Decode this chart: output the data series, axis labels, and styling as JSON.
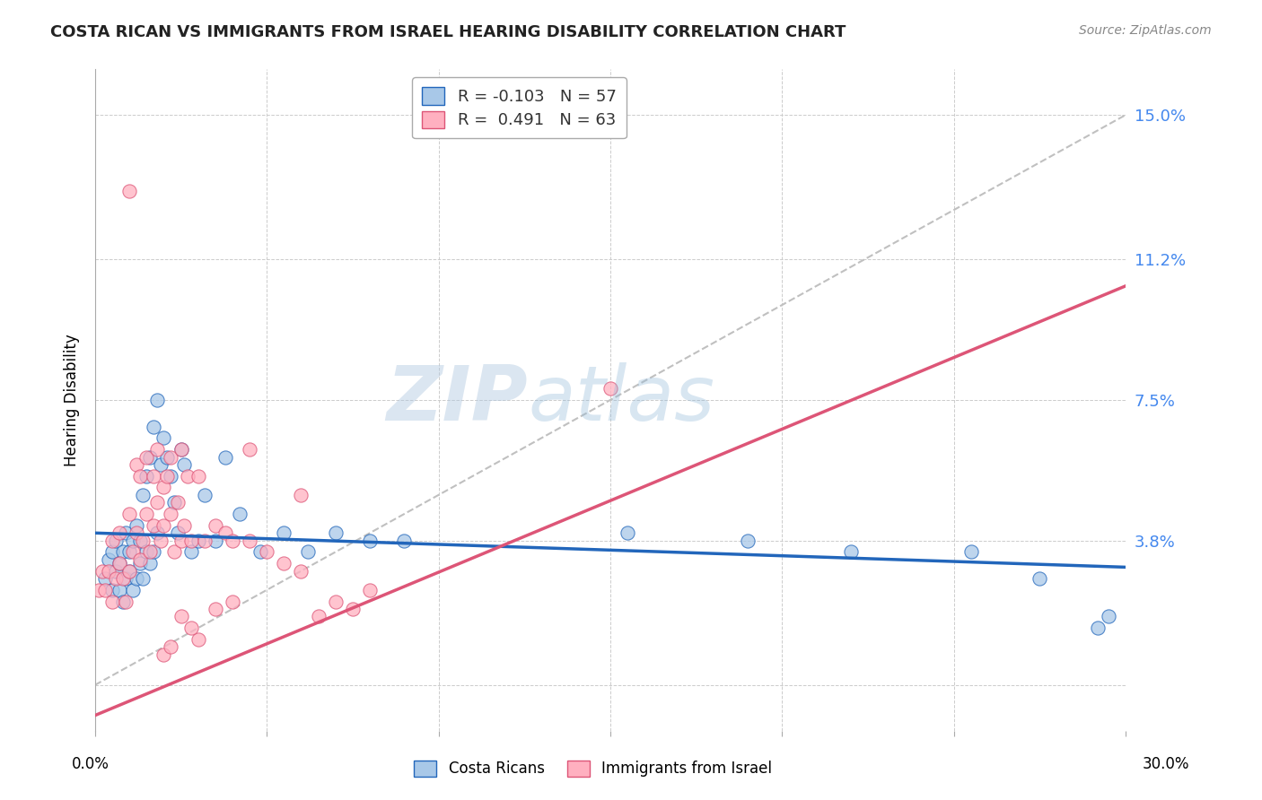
{
  "title": "COSTA RICAN VS IMMIGRANTS FROM ISRAEL HEARING DISABILITY CORRELATION CHART",
  "source": "Source: ZipAtlas.com",
  "ylabel": "Hearing Disability",
  "yticks": [
    0.0,
    0.038,
    0.075,
    0.112,
    0.15
  ],
  "ytick_labels": [
    "",
    "3.8%",
    "7.5%",
    "11.2%",
    "15.0%"
  ],
  "xlim": [
    0.0,
    0.3
  ],
  "ylim": [
    -0.012,
    0.162
  ],
  "legend_r1": "R = -0.103",
  "legend_n1": "N = 57",
  "legend_r2": "R =  0.491",
  "legend_n2": "N = 63",
  "legend_label1": "Costa Ricans",
  "legend_label2": "Immigrants from Israel",
  "color_blue": "#A8C8E8",
  "color_pink": "#FFB0C0",
  "line_blue": "#2266BB",
  "line_pink": "#DD5577",
  "line_diag": "#C0C0C0",
  "watermark_zip": "ZIP",
  "watermark_atlas": "atlas",
  "blue_scatter_x": [
    0.003,
    0.004,
    0.005,
    0.005,
    0.006,
    0.006,
    0.007,
    0.007,
    0.008,
    0.008,
    0.009,
    0.009,
    0.01,
    0.01,
    0.011,
    0.011,
    0.012,
    0.012,
    0.013,
    0.013,
    0.014,
    0.014,
    0.015,
    0.015,
    0.016,
    0.016,
    0.017,
    0.017,
    0.018,
    0.018,
    0.019,
    0.02,
    0.021,
    0.022,
    0.023,
    0.024,
    0.025,
    0.026,
    0.028,
    0.03,
    0.032,
    0.035,
    0.038,
    0.042,
    0.048,
    0.055,
    0.062,
    0.07,
    0.08,
    0.09,
    0.155,
    0.19,
    0.22,
    0.255,
    0.275,
    0.292,
    0.295
  ],
  "blue_scatter_y": [
    0.028,
    0.033,
    0.025,
    0.035,
    0.03,
    0.038,
    0.025,
    0.032,
    0.022,
    0.035,
    0.028,
    0.04,
    0.03,
    0.035,
    0.038,
    0.025,
    0.042,
    0.028,
    0.032,
    0.038,
    0.05,
    0.028,
    0.035,
    0.055,
    0.032,
    0.06,
    0.068,
    0.035,
    0.04,
    0.075,
    0.058,
    0.065,
    0.06,
    0.055,
    0.048,
    0.04,
    0.062,
    0.058,
    0.035,
    0.038,
    0.05,
    0.038,
    0.06,
    0.045,
    0.035,
    0.04,
    0.035,
    0.04,
    0.038,
    0.038,
    0.04,
    0.038,
    0.035,
    0.035,
    0.028,
    0.015,
    0.018
  ],
  "pink_scatter_x": [
    0.001,
    0.002,
    0.003,
    0.004,
    0.005,
    0.005,
    0.006,
    0.007,
    0.007,
    0.008,
    0.009,
    0.01,
    0.01,
    0.011,
    0.012,
    0.012,
    0.013,
    0.013,
    0.014,
    0.015,
    0.015,
    0.016,
    0.017,
    0.017,
    0.018,
    0.018,
    0.019,
    0.02,
    0.02,
    0.021,
    0.022,
    0.022,
    0.023,
    0.024,
    0.025,
    0.025,
    0.026,
    0.027,
    0.028,
    0.03,
    0.032,
    0.035,
    0.038,
    0.04,
    0.045,
    0.05,
    0.055,
    0.06,
    0.065,
    0.07,
    0.075,
    0.08,
    0.01,
    0.15,
    0.045,
    0.06,
    0.02,
    0.022,
    0.03,
    0.028,
    0.025,
    0.035,
    0.04
  ],
  "pink_scatter_y": [
    0.025,
    0.03,
    0.025,
    0.03,
    0.022,
    0.038,
    0.028,
    0.032,
    0.04,
    0.028,
    0.022,
    0.03,
    0.045,
    0.035,
    0.04,
    0.058,
    0.033,
    0.055,
    0.038,
    0.045,
    0.06,
    0.035,
    0.042,
    0.055,
    0.048,
    0.062,
    0.038,
    0.052,
    0.042,
    0.055,
    0.045,
    0.06,
    0.035,
    0.048,
    0.038,
    0.062,
    0.042,
    0.055,
    0.038,
    0.055,
    0.038,
    0.042,
    0.04,
    0.038,
    0.038,
    0.035,
    0.032,
    0.03,
    0.018,
    0.022,
    0.02,
    0.025,
    0.13,
    0.078,
    0.062,
    0.05,
    0.008,
    0.01,
    0.012,
    0.015,
    0.018,
    0.02,
    0.022
  ],
  "blue_line_x": [
    0.0,
    0.3
  ],
  "blue_line_y": [
    0.04,
    0.031
  ],
  "pink_line_x": [
    0.0,
    0.3
  ],
  "pink_line_y": [
    -0.008,
    0.105
  ],
  "diag_line_x": [
    0.0,
    0.3
  ],
  "diag_line_y": [
    0.0,
    0.15
  ]
}
